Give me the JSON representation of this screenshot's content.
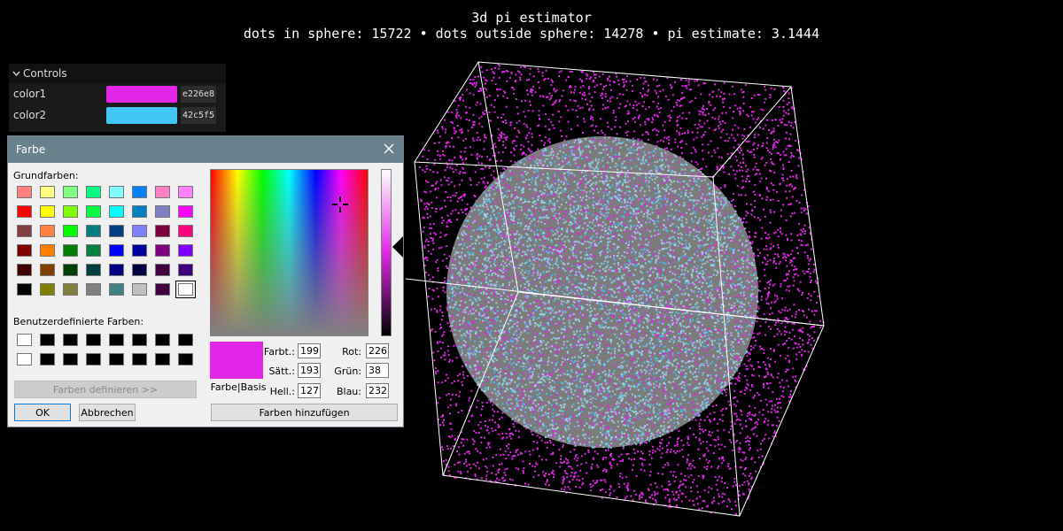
{
  "header": {
    "title": "3d pi estimator",
    "stats": "dots in sphere: 15722 • dots outside sphere: 14278 • pi estimate: 3.1444"
  },
  "controls": {
    "title": "Controls",
    "items": [
      {
        "label": "color1",
        "hex": "e226e8",
        "color": "#e226e8"
      },
      {
        "label": "color2",
        "hex": "42c5f5",
        "color": "#42c5f5"
      }
    ]
  },
  "dialog": {
    "title": "Farbe",
    "basic_label": "Grundfarben:",
    "custom_label": "Benutzerdefinierte Farben:",
    "define_button": "Farben definieren >>",
    "ok_button": "OK",
    "cancel_button": "Abbrechen",
    "add_button": "Farben hinzufügen",
    "preview_label": "Farbe|Basis",
    "fields": {
      "hue_label": "Farbt.:",
      "hue": "199",
      "sat_label": "Sätt.:",
      "sat": "193",
      "lum_label": "Hell.:",
      "lum": "127",
      "red_label": "Rot:",
      "red": "226",
      "green_label": "Grün:",
      "green": "38",
      "blue_label": "Blau:",
      "blue": "232"
    },
    "basic_colors": [
      "#ff8080",
      "#ffff80",
      "#80ff80",
      "#00ff80",
      "#80ffff",
      "#0080ff",
      "#ff80c0",
      "#ff80ff",
      "#ff0000",
      "#ffff00",
      "#80ff00",
      "#00ff40",
      "#00ffff",
      "#0080c0",
      "#8080c0",
      "#ff00ff",
      "#804040",
      "#ff8040",
      "#00ff00",
      "#008080",
      "#004080",
      "#8080ff",
      "#800040",
      "#ff0080",
      "#800000",
      "#ff8000",
      "#008000",
      "#008040",
      "#0000ff",
      "#0000a0",
      "#800080",
      "#8000ff",
      "#400000",
      "#804000",
      "#004000",
      "#004040",
      "#000080",
      "#000040",
      "#400040",
      "#400080",
      "#000000",
      "#808000",
      "#808040",
      "#808080",
      "#408080",
      "#c0c0c0",
      "#400040",
      "#ffffff"
    ],
    "custom_colors": [
      "#ffffff",
      "#000000",
      "#000000",
      "#000000",
      "#000000",
      "#000000",
      "#000000",
      "#000000",
      "#ffffff",
      "#000000",
      "#000000",
      "#000000",
      "#000000",
      "#000000",
      "#000000",
      "#000000"
    ]
  },
  "scene": {
    "dot_color_outside": "#e226e8",
    "dot_color_inside": "#42c5f5",
    "box_color": "#ffffff"
  }
}
